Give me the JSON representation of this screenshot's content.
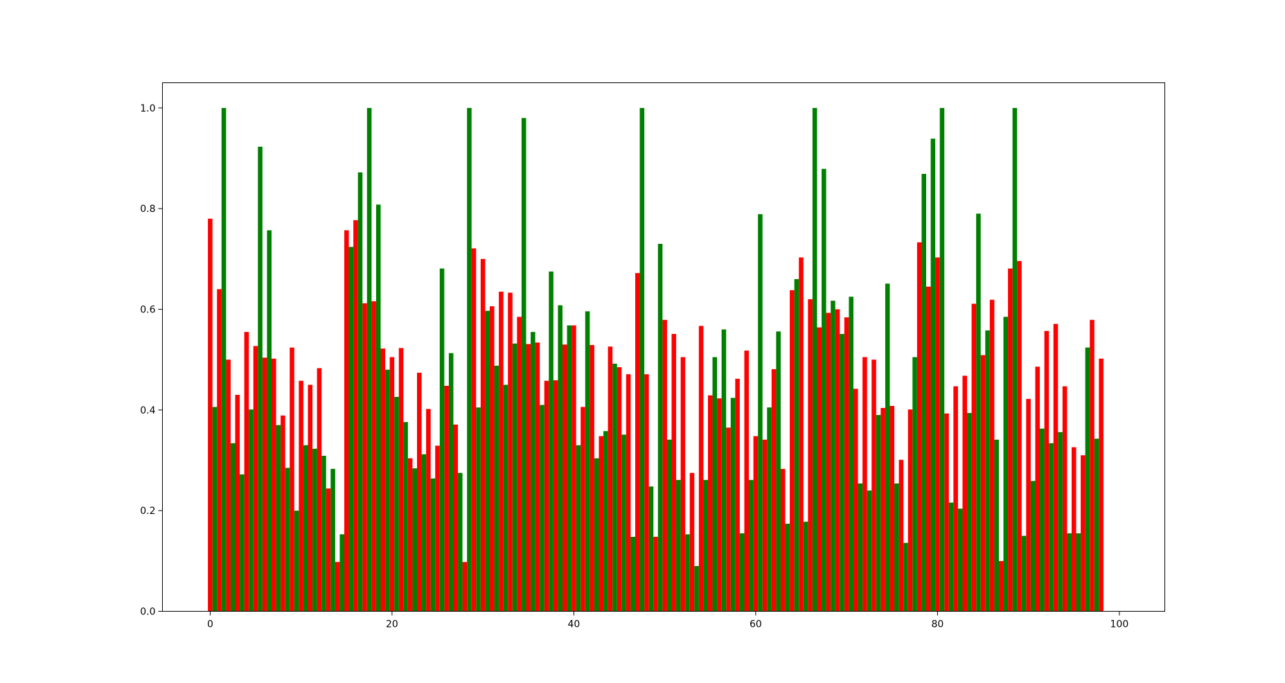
{
  "chart_data": {
    "type": "bar",
    "title": "",
    "xlabel": "",
    "ylabel": "",
    "xlim": [
      -5.25,
      105.0
    ],
    "ylim": [
      0,
      1.05
    ],
    "grid": false,
    "legend": "none",
    "bar_width": 0.5,
    "x_ticks": [
      0,
      20,
      40,
      60,
      80,
      100
    ],
    "x_tick_labels": [
      "0",
      "20",
      "40",
      "60",
      "80",
      "100"
    ],
    "y_ticks": [
      0.0,
      0.2,
      0.4,
      0.6,
      0.8,
      1.0
    ],
    "y_tick_labels": [
      "0.0",
      "0.2",
      "0.4",
      "0.6",
      "0.8",
      "1.0"
    ],
    "series": [
      {
        "color": "#ff0000",
        "x_offset": 0,
        "values": [
          0.78,
          0.64,
          0.5,
          0.43,
          0.555,
          0.527,
          0.504,
          0.502,
          0.389,
          0.524,
          0.458,
          0.45,
          0.483,
          0.244,
          0.098,
          0.757,
          0.777,
          0.612,
          0.616,
          0.522,
          0.505,
          0.523,
          0.304,
          0.474,
          0.402,
          0.329,
          0.448,
          0.371,
          0.098,
          0.721,
          0.7,
          0.606,
          0.635,
          0.633,
          0.585,
          0.531,
          0.534,
          0.458,
          0.459,
          0.53,
          0.568,
          0.406,
          0.529,
          0.348,
          0.526,
          0.485,
          0.471,
          0.672,
          0.471,
          0.148,
          0.579,
          0.551,
          0.505,
          0.275,
          0.567,
          0.429,
          0.423,
          0.365,
          0.462,
          0.518,
          0.348,
          0.341,
          0.481,
          0.283,
          0.638,
          0.703,
          0.62,
          0.564,
          0.593,
          0.6,
          0.584,
          0.442,
          0.505,
          0.5,
          0.404,
          0.408,
          0.301,
          0.401,
          0.733,
          0.645,
          0.703,
          0.393,
          0.447,
          0.468,
          0.611,
          0.509,
          0.619,
          0.1,
          0.681,
          0.696,
          0.422,
          0.486,
          0.557,
          0.571,
          0.447,
          0.326,
          0.31,
          0.579,
          0.502
        ]
      },
      {
        "color": "#008000",
        "x_offset": 0.5,
        "values": [
          0.406,
          1.0,
          0.334,
          0.272,
          0.401,
          0.923,
          0.757,
          0.37,
          0.285,
          0.2,
          0.33,
          0.323,
          0.309,
          0.283,
          0.153,
          0.724,
          0.872,
          1.0,
          0.808,
          0.48,
          0.426,
          0.376,
          0.284,
          0.312,
          0.264,
          0.681,
          0.513,
          0.275,
          1.0,
          0.405,
          0.597,
          0.488,
          0.45,
          0.532,
          0.98,
          0.555,
          0.41,
          0.675,
          0.608,
          0.568,
          0.33,
          0.596,
          0.304,
          0.358,
          0.492,
          0.351,
          0.148,
          1.0,
          0.248,
          0.73,
          0.341,
          0.261,
          0.153,
          0.09,
          0.261,
          0.505,
          0.56,
          0.424,
          0.155,
          0.261,
          0.789,
          0.405,
          0.556,
          0.174,
          0.66,
          0.178,
          1.0,
          0.879,
          0.617,
          0.551,
          0.625,
          0.254,
          0.24,
          0.39,
          0.651,
          0.254,
          0.136,
          0.505,
          0.869,
          0.939,
          1.0,
          0.216,
          0.204,
          0.394,
          0.79,
          0.558,
          0.341,
          0.585,
          1.0,
          0.15,
          0.259,
          0.363,
          0.334,
          0.356,
          0.155,
          0.155,
          0.524,
          0.343
        ]
      }
    ]
  }
}
